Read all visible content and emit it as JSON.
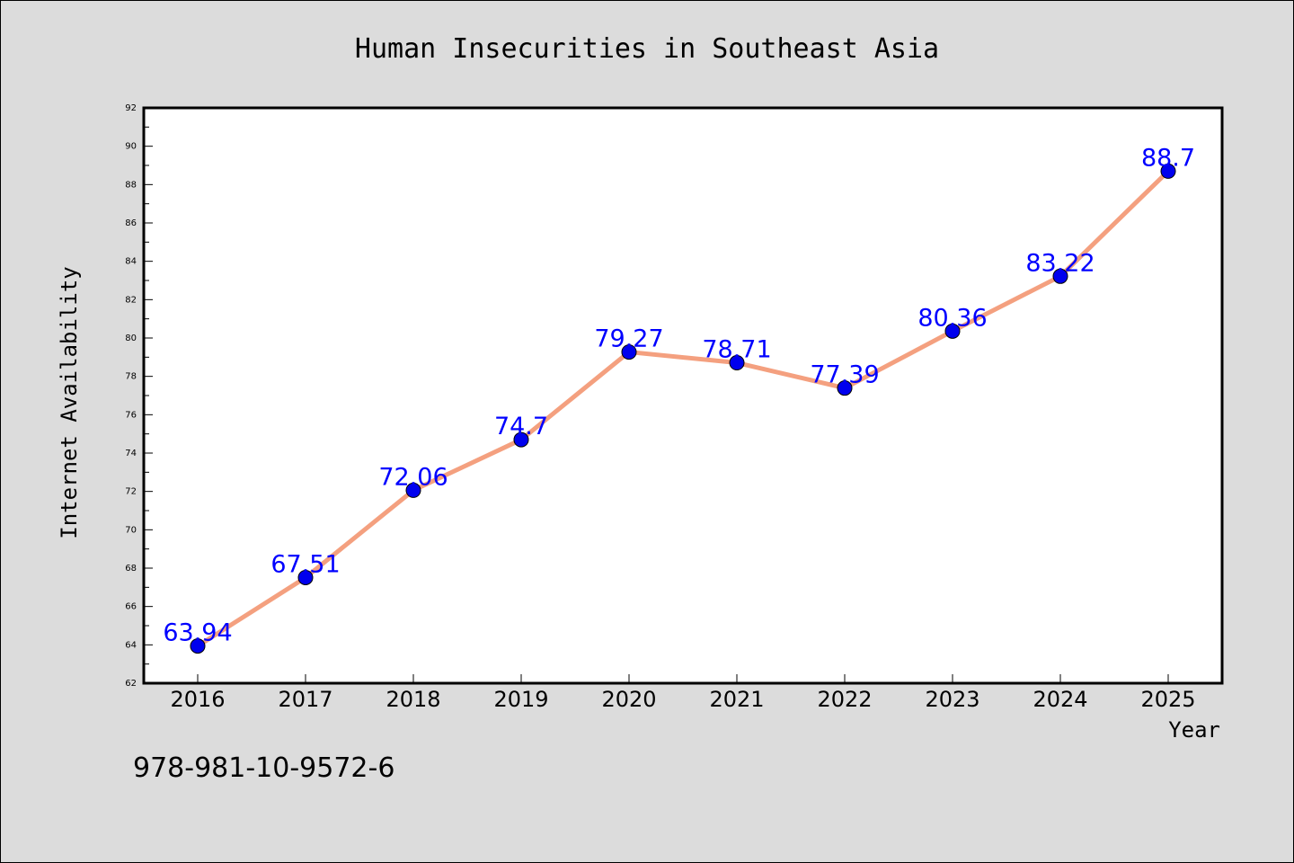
{
  "chart_data": {
    "type": "line",
    "title": "Human Insecurities in Southeast Asia",
    "xlabel": "Year",
    "ylabel": "Internet Availability",
    "categories": [
      "2016",
      "2017",
      "2018",
      "2019",
      "2020",
      "2021",
      "2022",
      "2023",
      "2024",
      "2025"
    ],
    "series": [
      {
        "values": [
          63.94,
          67.51,
          72.06,
          74.7,
          79.27,
          78.71,
          77.39,
          80.36,
          83.22,
          88.7
        ],
        "labels": [
          "63.94",
          "67.51",
          "72.06",
          "74.7",
          "79.27",
          "78.71",
          "77.39",
          "80.36",
          "83.22",
          "88.7"
        ],
        "line_color": "#f4a07f",
        "marker_color": "#0000ee"
      }
    ],
    "ylim": [
      62,
      92
    ],
    "yticks": [
      62,
      64,
      66,
      68,
      70,
      72,
      74,
      76,
      78,
      80,
      82,
      84,
      86,
      88,
      90,
      92
    ],
    "label_color": "#0000ff",
    "grid": false,
    "legend": "none"
  },
  "annotation": "978-981-10-9572-6"
}
